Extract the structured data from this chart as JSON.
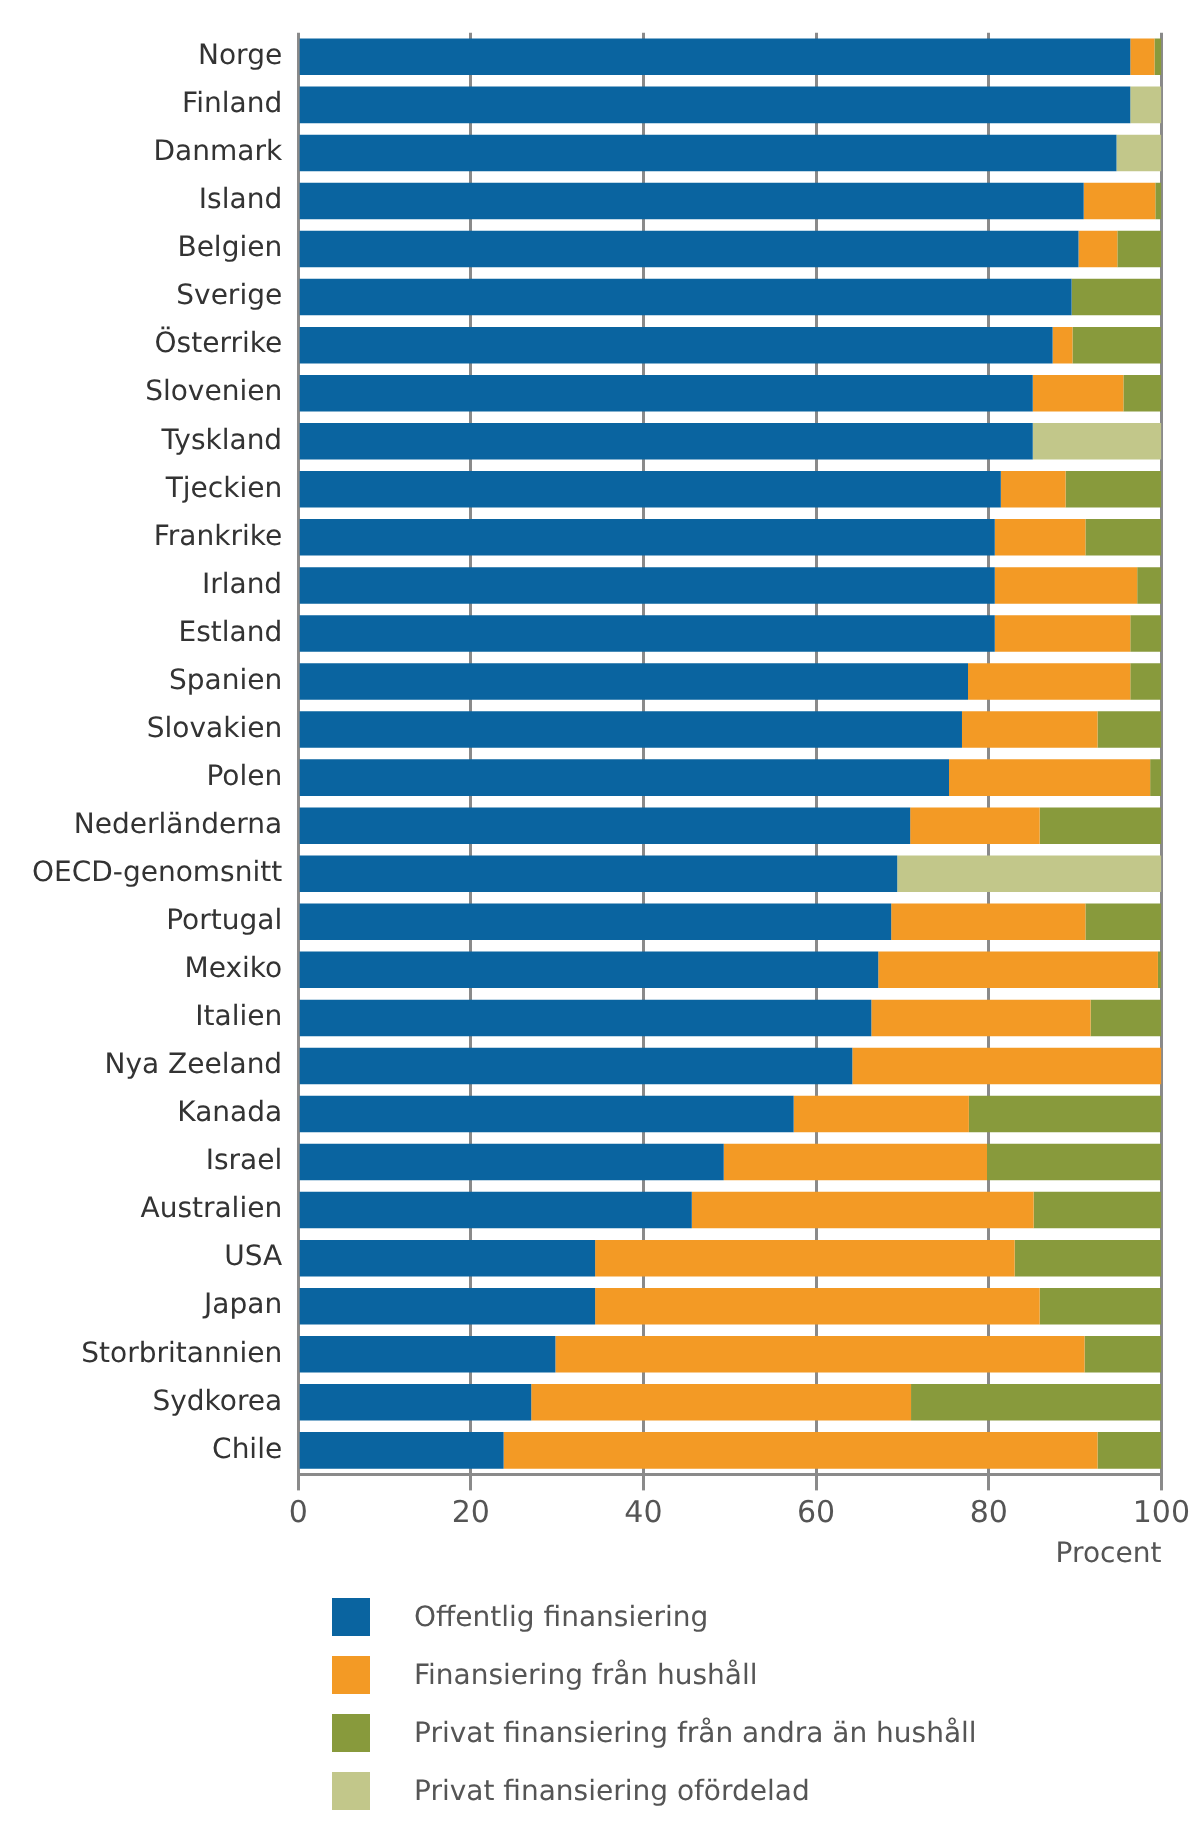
{
  "chart_data": {
    "type": "bar",
    "orientation": "horizontal",
    "stacked": true,
    "categories": [
      "Norge",
      "Finland",
      "Danmark",
      "Island",
      "Belgien",
      "Sverige",
      "Österrike",
      "Slovenien",
      "Tyskland",
      "Tjeckien",
      "Frankrike",
      "Irland",
      "Estland",
      "Spanien",
      "Slovakien",
      "Polen",
      "Nederländerna",
      "OECD-genomsnitt",
      "Portugal",
      "Mexiko",
      "Italien",
      "Nya Zeeland",
      "Kanada",
      "Israel",
      "Australien",
      "USA",
      "Japan",
      "Storbritannien",
      "Sydkorea",
      "Chile"
    ],
    "series": [
      {
        "name": "Offentlig finansiering",
        "color": "#0a64a0",
        "values": [
          96.4,
          96.4,
          94.8,
          91.0,
          90.4,
          89.6,
          87.4,
          85.1,
          85.1,
          81.4,
          80.7,
          80.7,
          80.7,
          77.6,
          76.9,
          75.4,
          70.9,
          69.4,
          68.7,
          67.2,
          66.4,
          64.2,
          57.4,
          49.3,
          45.6,
          34.4,
          34.4,
          29.8,
          27.0,
          23.8
        ]
      },
      {
        "name": "Finansiering från hushåll",
        "color": "#f39a25",
        "values": [
          2.8,
          null,
          null,
          8.3,
          4.5,
          null,
          2.3,
          10.5,
          null,
          7.5,
          10.5,
          16.5,
          15.7,
          18.8,
          15.7,
          23.3,
          15.0,
          null,
          22.5,
          32.4,
          25.4,
          35.8,
          20.3,
          30.5,
          39.6,
          48.6,
          51.5,
          61.3,
          44.0,
          68.8
        ]
      },
      {
        "name": "Privat finansiering från andra än hushåll",
        "color": "#889a3c",
        "values": [
          0.8,
          null,
          null,
          0.7,
          5.1,
          10.4,
          10.3,
          4.4,
          null,
          11.1,
          8.8,
          2.8,
          3.6,
          3.6,
          7.4,
          1.3,
          14.1,
          null,
          8.8,
          0.4,
          8.2,
          null,
          22.3,
          20.2,
          14.8,
          17.0,
          14.1,
          8.9,
          29.0,
          7.4
        ]
      },
      {
        "name": "Privat finansiering ofördelad",
        "color": "#c2c78a",
        "values": [
          null,
          3.6,
          5.2,
          null,
          null,
          null,
          null,
          null,
          14.9,
          null,
          null,
          null,
          null,
          null,
          null,
          null,
          null,
          30.6,
          null,
          null,
          null,
          null,
          null,
          null,
          null,
          null,
          null,
          null,
          null,
          null
        ]
      }
    ],
    "xlim": [
      0,
      100
    ],
    "xticks": [
      0,
      20,
      40,
      60,
      80,
      100
    ],
    "xlabel": "Procent",
    "grid": "x",
    "legend": "bottom"
  }
}
